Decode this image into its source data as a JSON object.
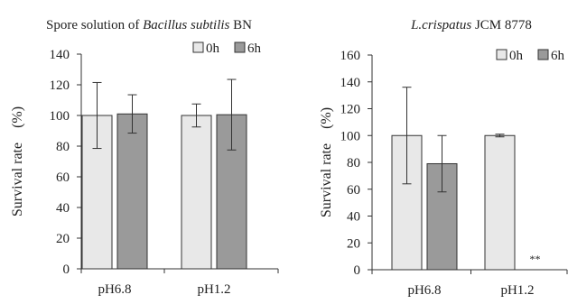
{
  "chart_data": [
    {
      "type": "bar",
      "title": "Spore solution of Bacillus subtilis BN",
      "title_parts": [
        {
          "text": "Spore solution of ",
          "italic": false
        },
        {
          "text": "Bacillus subtilis",
          "italic": true
        },
        {
          "text": " BN",
          "italic": false
        }
      ],
      "ylabel": "Survival rate　(%)",
      "ylim": [
        0,
        140
      ],
      "yticks": [
        0,
        20,
        40,
        60,
        80,
        100,
        120,
        140
      ],
      "categories": [
        "pH6.8",
        "pH1.2"
      ],
      "legend_position": "top-right",
      "grid": false,
      "series": [
        {
          "name": "0h",
          "color": "#e8e8e8",
          "values": [
            100,
            100
          ],
          "errors": [
            21.5,
            7.5
          ]
        },
        {
          "name": "6h",
          "color": "#9a9a9a",
          "values": [
            101,
            100.5
          ],
          "errors": [
            12.5,
            23
          ]
        }
      ],
      "annotations": []
    },
    {
      "type": "bar",
      "title": "L.crispatus JCM 8778",
      "title_parts": [
        {
          "text": "L.crispatus",
          "italic": true
        },
        {
          "text": " JCM 8778",
          "italic": false
        }
      ],
      "ylabel": "Survival rate　(%)",
      "ylim": [
        0,
        160
      ],
      "yticks": [
        0,
        20,
        40,
        60,
        80,
        100,
        120,
        140,
        160
      ],
      "categories": [
        "pH6.8",
        "pH1.2"
      ],
      "legend_position": "top-right",
      "grid": false,
      "series": [
        {
          "name": "0h",
          "color": "#e8e8e8",
          "values": [
            100,
            100
          ],
          "errors": [
            36,
            1
          ]
        },
        {
          "name": "6h",
          "color": "#9a9a9a",
          "values": [
            79,
            0
          ],
          "errors": [
            21,
            0
          ]
        }
      ],
      "annotations": [
        {
          "text": "**",
          "category": "pH1.2",
          "series": "6h",
          "value": 0
        }
      ]
    }
  ]
}
